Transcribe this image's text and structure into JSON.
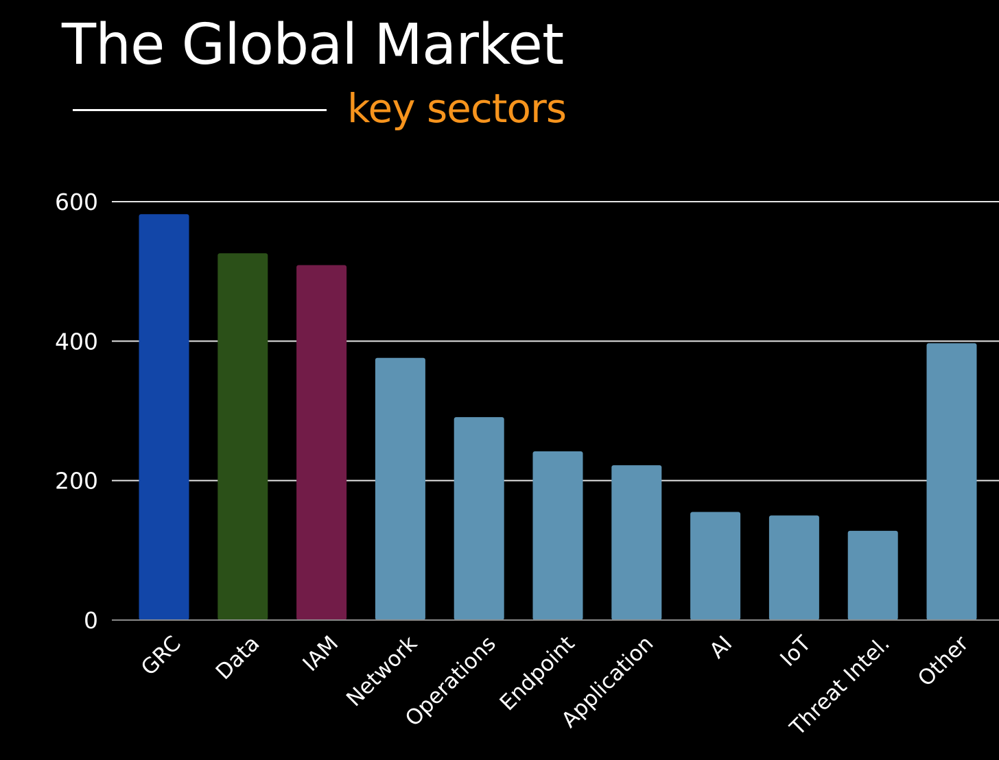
{
  "header": {
    "title": "The Global Market",
    "subtitle": "key sectors"
  },
  "colors": {
    "background": "#000000",
    "text": "#ffffff",
    "accent": "#f7941d",
    "grid": "#e6e6e6"
  },
  "chart_data": {
    "type": "bar",
    "title": "The Global Market",
    "subtitle": "key sectors",
    "xlabel": "",
    "ylabel": "",
    "ylim": [
      0,
      600
    ],
    "yticks": [
      0,
      200,
      400,
      600
    ],
    "grid": true,
    "legend": "none",
    "categories": [
      "GRC",
      "Data",
      "IAM",
      "Network",
      "Operations",
      "Endpoint",
      "Application",
      "AI",
      "IoT",
      "Threat Intel.",
      "Other"
    ],
    "values": [
      582,
      526,
      509,
      376,
      291,
      242,
      222,
      155,
      150,
      128,
      397
    ],
    "bar_colors": [
      "#1246a8",
      "#2b5018",
      "#721c48",
      "#5d93b3",
      "#5d93b3",
      "#5d93b3",
      "#5d93b3",
      "#5d93b3",
      "#5d93b3",
      "#5d93b3",
      "#5d93b3"
    ]
  }
}
